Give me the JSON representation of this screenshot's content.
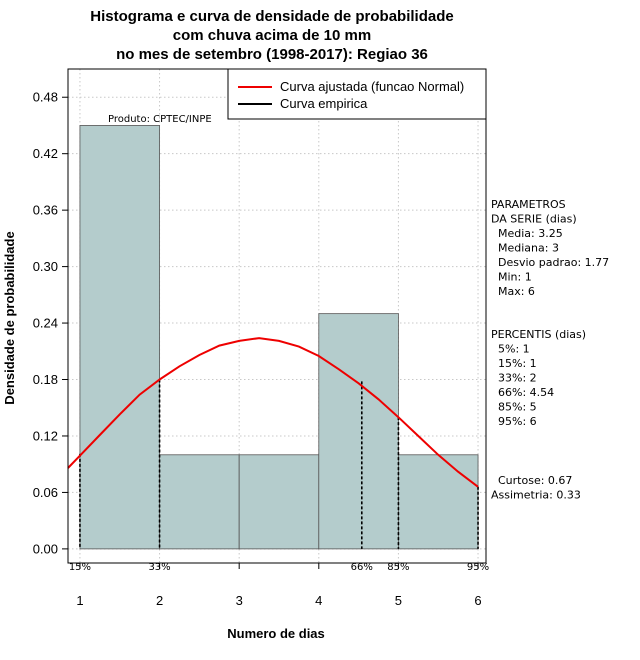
{
  "chart_data": {
    "type": "bar",
    "title": [
      "Histograma e curva de densidade de probabilidade",
      "com chuva acima de 10 mm",
      "no mes de setembro (1998-2017): Regiao 36"
    ],
    "xlabel": "Numero de dias",
    "ylabel": "Densidade de probabilidade",
    "xlim": [
      0.85,
      6.1
    ],
    "ylim": [
      -0.015,
      0.51
    ],
    "x_ticks": [
      "1",
      "2",
      "3",
      "4",
      "5",
      "6"
    ],
    "y_ticks": [
      "0.00",
      "0.06",
      "0.12",
      "0.18",
      "0.24",
      "0.30",
      "0.36",
      "0.42",
      "0.48"
    ],
    "grid": true,
    "bars": [
      {
        "x0": 1,
        "x1": 2,
        "value": 0.45
      },
      {
        "x0": 2,
        "x1": 3,
        "value": 0.1
      },
      {
        "x0": 3,
        "x1": 4,
        "value": 0.1
      },
      {
        "x0": 4,
        "x1": 5,
        "value": 0.25
      },
      {
        "x0": 5,
        "x1": 6,
        "value": 0.1
      }
    ],
    "bar_color": "#b4cccc",
    "curve": {
      "name": "Curva ajustada (funcao Normal)",
      "color": "#ee0000",
      "points": [
        [
          0.85,
          0.086
        ],
        [
          1.0,
          0.099
        ],
        [
          1.25,
          0.121
        ],
        [
          1.5,
          0.143
        ],
        [
          1.75,
          0.164
        ],
        [
          2.0,
          0.18
        ],
        [
          2.25,
          0.194
        ],
        [
          2.5,
          0.206
        ],
        [
          2.75,
          0.216
        ],
        [
          3.0,
          0.221
        ],
        [
          3.25,
          0.224
        ],
        [
          3.5,
          0.221
        ],
        [
          3.75,
          0.215
        ],
        [
          4.0,
          0.205
        ],
        [
          4.25,
          0.191
        ],
        [
          4.5,
          0.176
        ],
        [
          4.75,
          0.159
        ],
        [
          5.0,
          0.14
        ],
        [
          5.25,
          0.12
        ],
        [
          5.5,
          0.1
        ],
        [
          5.75,
          0.082
        ],
        [
          6.0,
          0.066
        ]
      ]
    },
    "empirical_legend": {
      "name": "Curva empirica",
      "color": "#000000"
    },
    "percentile_lines": [
      {
        "x": 1,
        "label": "15%",
        "y_top": 0.101
      },
      {
        "x": 2,
        "label": "33%",
        "y_top": 0.18
      },
      {
        "x": 4.54,
        "label": "66%",
        "y_top": 0.178
      },
      {
        "x": 5,
        "label": "85%",
        "y_top": 0.14
      },
      {
        "x": 6,
        "label": "95%",
        "y_top": 0.066
      }
    ],
    "legend_position": "top-right",
    "annotation": "Produto: CPTEC/INPE"
  },
  "side_panel": {
    "parametros": [
      "PARAMETROS",
      "DA SERIE (dias)",
      "  Media: 3.25",
      "  Mediana: 3",
      "  Desvio padrao: 1.77",
      "  Min: 1",
      "  Max: 6"
    ],
    "percentis": [
      "PERCENTIS (dias)",
      "  5%: 1",
      "  15%: 1",
      "  33%: 2",
      "  66%: 4.54",
      "  85%: 5",
      "  95%: 6"
    ],
    "stats": [
      "  Curtose: 0.67",
      "Assimetria: 0.33"
    ]
  }
}
